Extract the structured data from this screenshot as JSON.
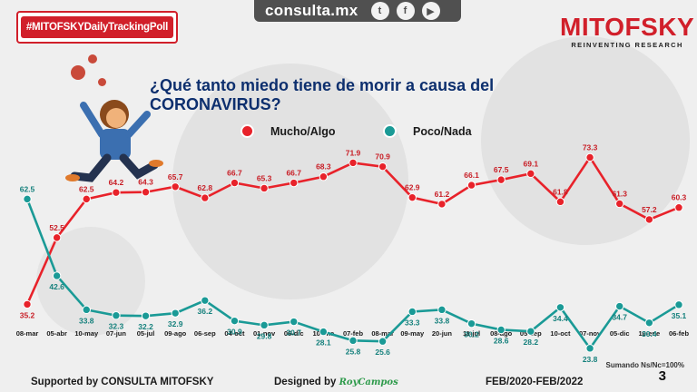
{
  "topbar": {
    "site": "consulta.mx",
    "social": [
      "twitter-icon",
      "facebook-icon",
      "youtube-icon"
    ]
  },
  "hashtag": "#MITOFSKYDailyTrackingPoll",
  "brand": {
    "name": "MITOFSKY",
    "tagline": "REINVENTING RESEARCH"
  },
  "question": "¿Qué tanto miedo tiene de morir a causa del CORONAVIRUS?",
  "colors": {
    "red": "#e8222a",
    "teal": "#1a9a96",
    "navy": "#0d2f6e",
    "brand_red": "#d11f2a"
  },
  "chart_data": {
    "type": "line",
    "categories": [
      "08-mar",
      "05-abr",
      "10-may",
      "07-jun",
      "05-jul",
      "09-ago",
      "06-sep",
      "04-oct",
      "01-nov",
      "06-dic",
      "10-ene",
      "07-feb",
      "08-mar",
      "09-may",
      "20-jun",
      "11-jul",
      "08-ago",
      "05-sep",
      "10-oct",
      "07-nov",
      "05-dic",
      "10-ene",
      "06-feb"
    ],
    "series": [
      {
        "name": "Mucho/Algo",
        "color": "#e8222a",
        "values": [
          35.2,
          52.5,
          62.5,
          64.2,
          64.3,
          65.7,
          62.8,
          66.7,
          65.3,
          66.7,
          68.3,
          71.9,
          70.9,
          62.9,
          61.2,
          66.1,
          67.5,
          69.1,
          61.8,
          73.3,
          61.3,
          57.2,
          60.3
        ]
      },
      {
        "name": "Poco/Nada",
        "color": "#1a9a96",
        "values": [
          62.5,
          42.6,
          33.8,
          32.3,
          32.2,
          32.9,
          36.2,
          30.9,
          29.8,
          30.7,
          28.1,
          25.8,
          25.6,
          33.3,
          33.8,
          30.2,
          28.6,
          28.2,
          34.4,
          23.8,
          34.7,
          30.4,
          35.1
        ]
      }
    ],
    "ylim": [
      20,
      80
    ]
  },
  "note": "Sumando Ns/Nc=100%",
  "page_number": "3",
  "footer": {
    "supported": "Supported by   CONSULTA  MITOFSKY",
    "designed": "Designed by",
    "designer": "RoyCampos",
    "period": "FEB/2020-FEB/2022"
  }
}
